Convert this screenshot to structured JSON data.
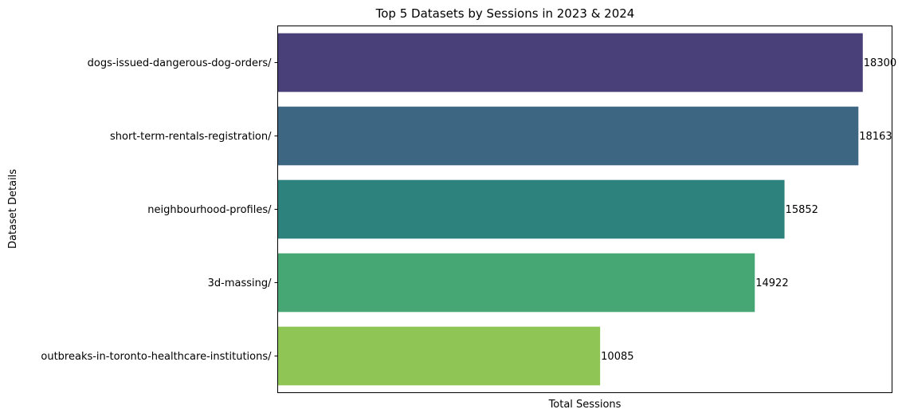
{
  "chart_data": {
    "type": "bar",
    "orientation": "horizontal",
    "title": "Top 5 Datasets by Sessions in 2023 & 2024",
    "xlabel": "Total Sessions",
    "ylabel": "Dataset Details",
    "xlim": [
      0,
      19215
    ],
    "grid": false,
    "x_ticks_visible": false,
    "categories": [
      "dogs-issued-dangerous-dog-orders/",
      "short-term-rentals-registration/",
      "neighbourhood-profiles/",
      "3d-massing/",
      "outbreaks-in-toronto-healthcare-institutions/"
    ],
    "values": [
      18300,
      18163,
      15852,
      14922,
      10085
    ],
    "value_labels": [
      "18300",
      "18163",
      "15852",
      "14922",
      "10085"
    ],
    "colors": [
      "#4a4079",
      "#3d6683",
      "#2e827e",
      "#46a674",
      "#8ec554"
    ]
  }
}
